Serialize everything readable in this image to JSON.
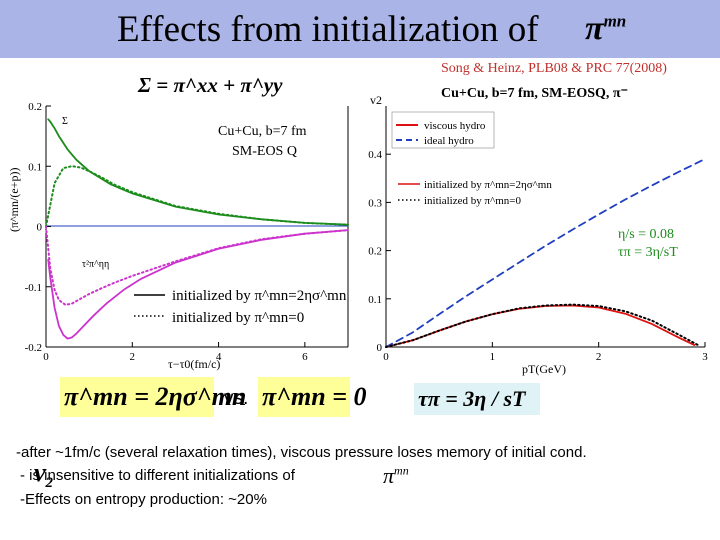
{
  "title": {
    "text": "Effects from initialization of",
    "symbol": "π",
    "symbol_sup": "mn"
  },
  "citation": "Song & Heinz, PLB08 & PRC 77(2008)",
  "chart_data": [
    {
      "type": "line",
      "title": "Σ = π^xx + π^yy",
      "xlabel": "τ−τ0(fm/c)",
      "ylabel": "(π^mn/(e+p))",
      "xlim": [
        0,
        7
      ],
      "ylim": [
        -0.2,
        0.2
      ],
      "xticks": [
        "0",
        "2",
        "4",
        "6"
      ],
      "yticks": [
        "0.2",
        "0.1",
        "0",
        "-0.1",
        "-0.2"
      ],
      "annotations": [
        "Cu+Cu, b=7 fm",
        "SM-EOS Q",
        "Σ",
        "τ²π^ηη"
      ],
      "legend": [
        "initialized by π^mn=2ησ^mn",
        "initialized by π^mn=0"
      ],
      "series": [
        {
          "legend_index": 0,
          "color": "#1c8c1c",
          "style": "solid",
          "x": [
            0.05,
            0.1,
            0.2,
            0.3,
            0.5,
            0.7,
            1.0,
            1.5,
            2.0,
            3.0,
            4.0,
            5.0,
            6.0,
            7.0
          ],
          "y": [
            0.178,
            0.174,
            0.163,
            0.15,
            0.128,
            0.111,
            0.092,
            0.07,
            0.055,
            0.033,
            0.02,
            0.012,
            0.006,
            0.003
          ]
        },
        {
          "legend_index": 1,
          "color": "#1c8c1c",
          "style": "dotted",
          "x": [
            0.0,
            0.2,
            0.4,
            0.6,
            0.8,
            1.0,
            1.3,
            1.6,
            2.0,
            3.0,
            4.0,
            5.0,
            6.0,
            7.0
          ],
          "y": [
            0.0,
            0.072,
            0.097,
            0.1,
            0.098,
            0.092,
            0.081,
            0.069,
            0.057,
            0.034,
            0.021,
            0.012,
            0.006,
            0.003
          ]
        },
        {
          "legend_index": 0,
          "color": "#cc33cc",
          "style": "solid",
          "x": [
            0.05,
            0.1,
            0.2,
            0.3,
            0.4,
            0.5,
            0.6,
            0.7,
            0.9,
            1.1,
            1.4,
            1.8,
            2.2,
            3.0,
            4.0,
            5.0,
            6.0,
            7.0
          ],
          "y": [
            -0.055,
            -0.085,
            -0.135,
            -0.165,
            -0.18,
            -0.186,
            -0.184,
            -0.178,
            -0.163,
            -0.148,
            -0.128,
            -0.105,
            -0.087,
            -0.06,
            -0.037,
            -0.022,
            -0.012,
            -0.006
          ]
        },
        {
          "legend_index": 1,
          "color": "#cc33cc",
          "style": "dotted",
          "x": [
            0.0,
            0.1,
            0.2,
            0.3,
            0.45,
            0.6,
            0.8,
            1.0,
            1.3,
            1.6,
            2.0,
            3.0,
            4.0,
            5.0,
            6.0,
            7.0
          ],
          "y": [
            0.0,
            -0.07,
            -0.105,
            -0.122,
            -0.13,
            -0.128,
            -0.12,
            -0.112,
            -0.102,
            -0.093,
            -0.082,
            -0.058,
            -0.036,
            -0.021,
            -0.012,
            -0.006
          ]
        }
      ]
    },
    {
      "type": "line",
      "title": "Cu+Cu, b=7 fm, SM-EOSQ, π⁻",
      "xlabel": "pT(GeV)",
      "ylabel": "v2",
      "xlim": [
        0,
        3
      ],
      "ylim": [
        0,
        0.5
      ],
      "xticks": [
        "0",
        "1",
        "2",
        "3"
      ],
      "yticks": [
        "0",
        "0.1",
        "0.2",
        "0.3",
        "0.4"
      ],
      "annotations": [
        "η/s = 0.08",
        "τπ = 3η/sT"
      ],
      "legend": [
        "viscous hydro",
        "ideal hydro",
        "initialized by π^mn=2ησ^mn",
        "initialized by π^mn=0"
      ],
      "series": [
        {
          "name": "viscous hydro",
          "color": "#dd1111",
          "style": "solid",
          "x": [
            0,
            0.25,
            0.5,
            0.75,
            1.0,
            1.25,
            1.5,
            1.75,
            2.0,
            2.25,
            2.5,
            2.75,
            2.9
          ],
          "y": [
            0,
            0.014,
            0.034,
            0.053,
            0.068,
            0.079,
            0.085,
            0.086,
            0.082,
            0.069,
            0.048,
            0.02,
            0.004
          ]
        },
        {
          "name": "ideal hydro",
          "color": "#1f3fbf",
          "style": "dashed",
          "x": [
            0,
            0.25,
            0.5,
            0.75,
            1.0,
            1.25,
            1.5,
            1.75,
            2.0,
            2.25,
            2.5,
            2.75,
            3.0
          ],
          "y": [
            0,
            0.03,
            0.068,
            0.105,
            0.14,
            0.175,
            0.21,
            0.243,
            0.275,
            0.306,
            0.335,
            0.363,
            0.39
          ]
        },
        {
          "name": "initialized by π^mn=0",
          "color": "#000000",
          "style": "dotted",
          "x": [
            0,
            0.25,
            0.5,
            0.75,
            1.0,
            1.25,
            1.5,
            1.75,
            2.0,
            2.25,
            2.5,
            2.75,
            2.95
          ],
          "y": [
            0,
            0.014,
            0.034,
            0.053,
            0.068,
            0.08,
            0.086,
            0.088,
            0.085,
            0.074,
            0.055,
            0.026,
            0.002
          ]
        }
      ]
    }
  ],
  "equations": {
    "eq1": "π^mn = 2ησ^mn",
    "vs": "vs.",
    "eq2": "π^mn = 0",
    "eq3": "τπ = 3η / sT"
  },
  "bullets": {
    "b1": "-after ~1fm/c (several relaxation times), viscous pressure loses memory of initial cond.",
    "b2": "-       is insensitive to different initializations of",
    "b3": "-Effects on entropy production: ~20%"
  },
  "inline_symbols": {
    "v2": "v",
    "v2_sub": "2",
    "pi": "π",
    "pi_sup": "mn"
  },
  "colors": {
    "title_bar": "#aab4e6",
    "citation": "#c0302c",
    "eq_highlight": "#ffff99",
    "eq3_highlight": "#dff3f6"
  }
}
